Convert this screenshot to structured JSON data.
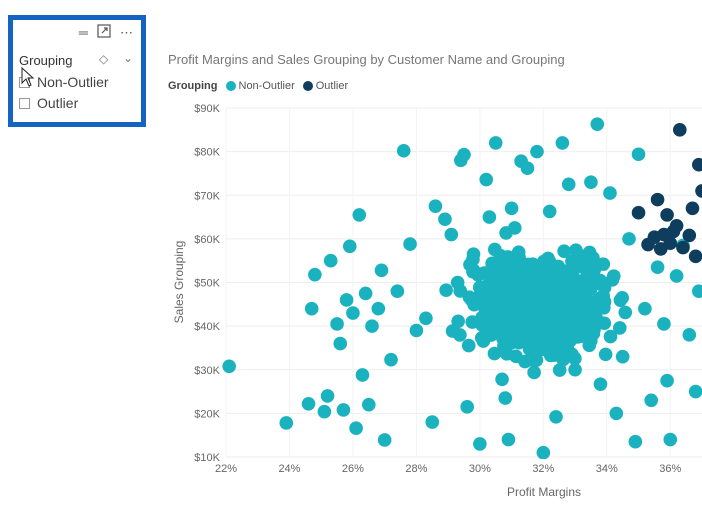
{
  "slicer": {
    "header": "Grouping",
    "items": [
      {
        "label": "Non-Outlier",
        "checked": false
      },
      {
        "label": "Outlier",
        "checked": false
      }
    ],
    "highlight_color": "#1565c0",
    "toolbar_icons": [
      "focus-mode-icon",
      "expand-icon",
      "more-options-icon"
    ]
  },
  "chart": {
    "title": "Profit Margins and Sales Grouping by Customer Name and Grouping",
    "legend_title": "Grouping",
    "legend": [
      {
        "name": "Non-Outlier",
        "color": "#1ab2be"
      },
      {
        "name": "Outlier",
        "color": "#0f3d5e"
      }
    ]
  },
  "chart_data": {
    "type": "scatter",
    "title": "Profit Margins and Sales Grouping by Customer Name and Grouping",
    "xlabel": "Profit Margins",
    "ylabel": "Sales Grouping",
    "xlim": [
      22,
      37
    ],
    "ylim": [
      10000,
      90000
    ],
    "x_ticks": [
      "22%",
      "24%",
      "26%",
      "28%",
      "30%",
      "32%",
      "34%",
      "36%"
    ],
    "y_ticks": [
      "$10K",
      "$20K",
      "$30K",
      "$40K",
      "$50K",
      "$60K",
      "$70K",
      "$80K",
      "$90K"
    ],
    "grid": true,
    "legend_position": "top-left",
    "series": [
      {
        "name": "Non-Outlier",
        "color": "#1ab2be",
        "points": [
          [
            22.1,
            30800
          ],
          [
            23.9,
            17800
          ],
          [
            24.6,
            22200
          ],
          [
            24.7,
            44000
          ],
          [
            24.8,
            51800
          ],
          [
            25.1,
            20400
          ],
          [
            25.2,
            24000
          ],
          [
            25.3,
            55000
          ],
          [
            25.5,
            40500
          ],
          [
            25.6,
            36000
          ],
          [
            25.7,
            20800
          ],
          [
            25.8,
            46000
          ],
          [
            25.9,
            58300
          ],
          [
            26.0,
            43000
          ],
          [
            26.1,
            16600
          ],
          [
            26.2,
            65500
          ],
          [
            26.3,
            28800
          ],
          [
            26.4,
            47500
          ],
          [
            26.5,
            22000
          ],
          [
            26.6,
            40000
          ],
          [
            26.8,
            44000
          ],
          [
            26.9,
            52800
          ],
          [
            27.0,
            13900
          ],
          [
            27.2,
            32300
          ],
          [
            27.4,
            48000
          ],
          [
            27.6,
            80200
          ],
          [
            27.8,
            58800
          ],
          [
            28.0,
            39000
          ],
          [
            28.3,
            41800
          ],
          [
            28.5,
            18000
          ],
          [
            28.6,
            67500
          ],
          [
            28.9,
            64500
          ],
          [
            29.1,
            61000
          ],
          [
            29.3,
            50000
          ],
          [
            29.4,
            78000
          ],
          [
            29.5,
            79300
          ],
          [
            29.6,
            21500
          ],
          [
            29.8,
            56500
          ],
          [
            30.0,
            13000
          ],
          [
            30.2,
            73600
          ],
          [
            30.3,
            65000
          ],
          [
            30.5,
            82000
          ],
          [
            30.7,
            27800
          ],
          [
            30.8,
            23500
          ],
          [
            30.9,
            14000
          ],
          [
            31.0,
            67000
          ],
          [
            31.1,
            62500
          ],
          [
            31.3,
            77800
          ],
          [
            31.5,
            76200
          ],
          [
            31.6,
            32300
          ],
          [
            31.8,
            80000
          ],
          [
            32.0,
            11000
          ],
          [
            32.1,
            41800
          ],
          [
            32.2,
            66300
          ],
          [
            32.4,
            19200
          ],
          [
            32.6,
            82000
          ],
          [
            32.8,
            72500
          ],
          [
            33.0,
            30000
          ],
          [
            33.1,
            48500
          ],
          [
            33.3,
            56000
          ],
          [
            33.5,
            73000
          ],
          [
            33.7,
            86300
          ],
          [
            33.8,
            26700
          ],
          [
            33.9,
            45000
          ],
          [
            34.1,
            70500
          ],
          [
            34.3,
            20000
          ],
          [
            34.5,
            33000
          ],
          [
            34.7,
            60000
          ],
          [
            34.9,
            13500
          ],
          [
            35.0,
            79400
          ],
          [
            35.2,
            44000
          ],
          [
            35.4,
            23000
          ],
          [
            35.6,
            53500
          ],
          [
            35.8,
            40500
          ],
          [
            35.9,
            27500
          ],
          [
            36.0,
            14000
          ],
          [
            36.2,
            51500
          ],
          [
            36.4,
            58500
          ],
          [
            36.6,
            38000
          ],
          [
            36.8,
            25000
          ],
          [
            36.9,
            48000
          ]
        ]
      },
      {
        "name": "Outlier",
        "color": "#0f3d5e",
        "points": [
          [
            35.0,
            66000
          ],
          [
            35.3,
            58700
          ],
          [
            35.5,
            60400
          ],
          [
            35.6,
            69000
          ],
          [
            35.7,
            57700
          ],
          [
            35.8,
            61000
          ],
          [
            35.9,
            65500
          ],
          [
            36.0,
            59000
          ],
          [
            36.1,
            61700
          ],
          [
            36.2,
            63000
          ],
          [
            36.3,
            85000
          ],
          [
            36.4,
            58000
          ],
          [
            36.6,
            60800
          ],
          [
            36.7,
            67000
          ],
          [
            36.8,
            56000
          ],
          [
            36.9,
            77000
          ],
          [
            37.0,
            71000
          ]
        ]
      }
    ],
    "cluster": {
      "name": "Non-Outlier",
      "center": [
        32.0,
        45000
      ],
      "spread": [
        1.9,
        9500
      ],
      "count": 560,
      "seed": 7
    }
  }
}
